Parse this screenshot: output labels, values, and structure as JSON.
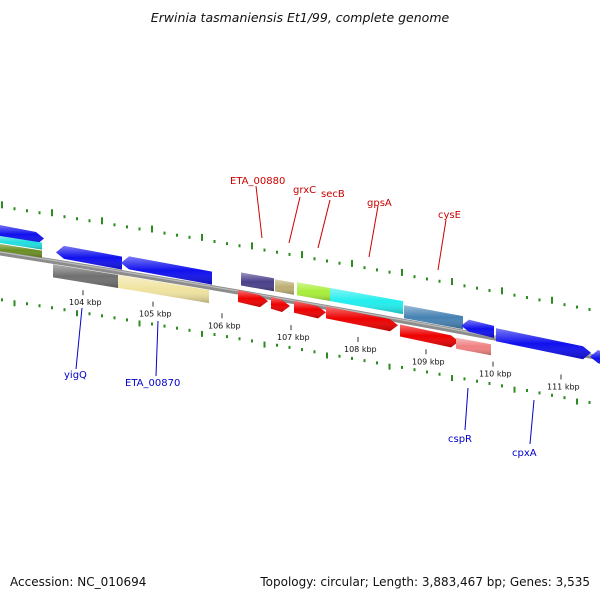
{
  "title": "Erwinia tasmaniensis Et1/99, complete genome",
  "footer": {
    "accession": "Accession: NC_010694",
    "summary": "Topology: circular; Length: 3,883,467 bp; Genes: 3,535"
  },
  "colors": {
    "backbone": "#8c8c8c",
    "gc_dots": "#2e8b22",
    "top_label": "#cc0000",
    "bottom_label": "#0000cc"
  },
  "ticks": [
    "104 kbp",
    "105 kbp",
    "106 kbp",
    "107 kbp",
    "108 kbp",
    "109 kbp",
    "110 kbp",
    "111 kbp"
  ],
  "labels_top": [
    "ETA_00880",
    "grxC",
    "secB",
    "gpsA",
    "cysE"
  ],
  "labels_bottom": [
    "yigQ",
    "ETA_00870",
    "cspR",
    "cpxA"
  ]
}
